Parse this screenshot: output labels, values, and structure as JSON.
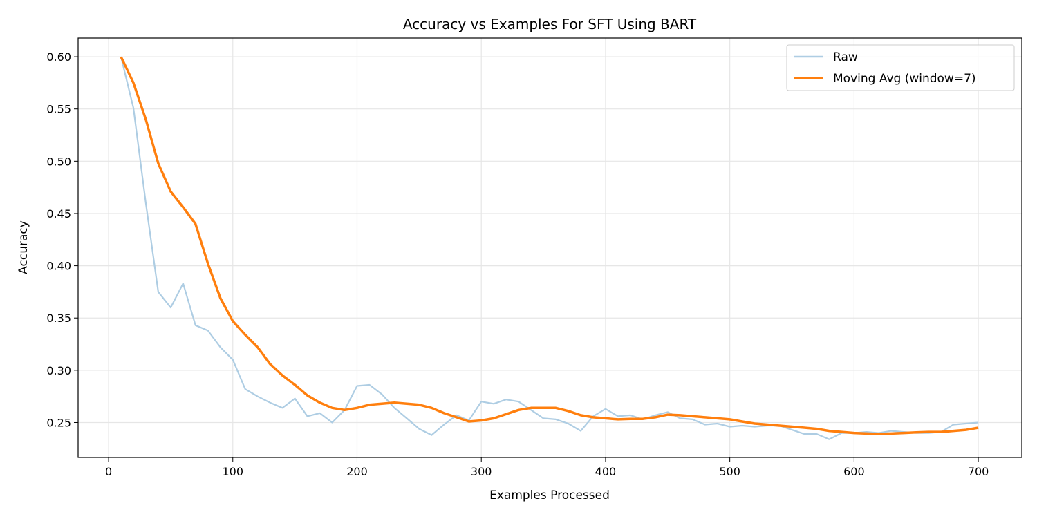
{
  "chart_data": {
    "type": "line",
    "title": "Accuracy vs Examples For SFT Using BART",
    "xlabel": "Examples Processed",
    "ylabel": "Accuracy",
    "xlim": [
      -24.5,
      735
    ],
    "ylim": [
      0.2166,
      0.6179
    ],
    "xticks": [
      0,
      100,
      200,
      300,
      400,
      500,
      600,
      700
    ],
    "xtick_labels": [
      "0",
      "100",
      "200",
      "300",
      "400",
      "500",
      "600",
      "700"
    ],
    "yticks": [
      0.25,
      0.3,
      0.35,
      0.4,
      0.45,
      0.5,
      0.55,
      0.6
    ],
    "ytick_labels": [
      "0.25",
      "0.30",
      "0.35",
      "0.40",
      "0.45",
      "0.50",
      "0.55",
      "0.60"
    ],
    "grid": true,
    "legend_position": "top-right",
    "x": [
      10,
      20,
      30,
      40,
      50,
      60,
      70,
      80,
      90,
      100,
      110,
      120,
      130,
      140,
      150,
      160,
      170,
      180,
      190,
      200,
      210,
      220,
      230,
      240,
      250,
      260,
      270,
      280,
      290,
      300,
      310,
      320,
      330,
      340,
      350,
      360,
      370,
      380,
      390,
      400,
      410,
      420,
      430,
      440,
      450,
      460,
      470,
      480,
      490,
      500,
      510,
      520,
      530,
      540,
      550,
      560,
      570,
      580,
      590,
      600,
      610,
      620,
      630,
      640,
      650,
      660,
      670,
      680,
      690,
      700
    ],
    "series": [
      {
        "name": "Raw",
        "color": "#aecde3",
        "values": [
          0.6,
          0.551,
          0.46,
          0.375,
          0.36,
          0.383,
          0.343,
          0.338,
          0.322,
          0.31,
          0.282,
          0.275,
          0.269,
          0.264,
          0.273,
          0.256,
          0.259,
          0.25,
          0.262,
          0.285,
          0.286,
          0.277,
          0.264,
          0.254,
          0.244,
          0.238,
          0.248,
          0.257,
          0.252,
          0.27,
          0.268,
          0.272,
          0.27,
          0.262,
          0.254,
          0.253,
          0.249,
          0.242,
          0.256,
          0.263,
          0.256,
          0.257,
          0.253,
          0.257,
          0.26,
          0.254,
          0.253,
          0.248,
          0.249,
          0.246,
          0.247,
          0.246,
          0.247,
          0.247,
          0.243,
          0.239,
          0.239,
          0.234,
          0.24,
          0.24,
          0.241,
          0.24,
          0.242,
          0.241,
          0.24,
          0.24,
          0.241,
          0.248,
          0.249,
          0.25
        ]
      },
      {
        "name": "Moving Avg (window=7)",
        "color": "#ff7f0e",
        "values": [
          0.6,
          0.575,
          0.54,
          0.498,
          0.471,
          0.456,
          0.44,
          0.402,
          0.369,
          0.347,
          0.334,
          0.322,
          0.306,
          0.295,
          0.286,
          0.276,
          0.269,
          0.264,
          0.262,
          0.264,
          0.267,
          0.268,
          0.269,
          0.268,
          0.267,
          0.264,
          0.259,
          0.255,
          0.251,
          0.252,
          0.254,
          0.258,
          0.262,
          0.264,
          0.264,
          0.264,
          0.261,
          0.257,
          0.255,
          0.254,
          0.253,
          0.2535,
          0.2535,
          0.255,
          0.2575,
          0.257,
          0.256,
          0.255,
          0.254,
          0.253,
          0.251,
          0.249,
          0.248,
          0.247,
          0.246,
          0.245,
          0.244,
          0.242,
          0.241,
          0.24,
          0.2395,
          0.239,
          0.2395,
          0.24,
          0.2405,
          0.241,
          0.241,
          0.242,
          0.243,
          0.245
        ]
      }
    ]
  }
}
